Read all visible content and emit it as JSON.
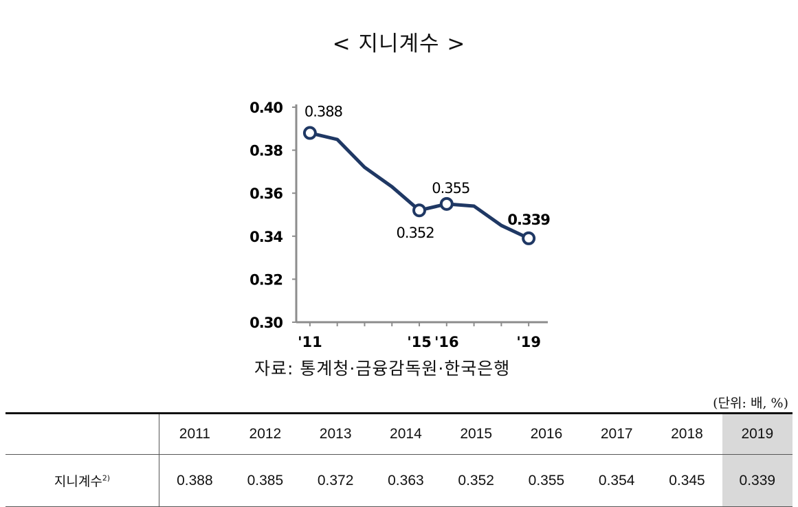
{
  "title": "< 지니계수 >",
  "source": "자료: 통계청·금융감독원·한국은행",
  "unit": "(단위: 배, %)",
  "chart_data": {
    "type": "line",
    "x": [
      2011,
      2012,
      2013,
      2014,
      2015,
      2016,
      2017,
      2018,
      2019
    ],
    "x_tick_labels": [
      "'11",
      "'15",
      "'16",
      "'19"
    ],
    "x_tick_years": [
      2011,
      2015,
      2016,
      2019
    ],
    "series": [
      {
        "values": [
          0.388,
          0.385,
          0.372,
          0.363,
          0.352,
          0.355,
          0.354,
          0.345,
          0.339
        ]
      }
    ],
    "marked_years": [
      2011,
      2015,
      2016,
      2019
    ],
    "data_labels": [
      {
        "year": 2011,
        "text": "0.388",
        "bold": false
      },
      {
        "year": 2015,
        "text": "0.352",
        "bold": false
      },
      {
        "year": 2016,
        "text": "0.355",
        "bold": false
      },
      {
        "year": 2019,
        "text": "0.339",
        "bold": true
      }
    ],
    "yticks": [
      "0.30",
      "0.32",
      "0.34",
      "0.36",
      "0.38",
      "0.40"
    ],
    "ylim": [
      0.3,
      0.4
    ],
    "xlim": [
      2010.5,
      2019.7
    ],
    "grid": false,
    "line_color": "#1f3864"
  },
  "table": {
    "years": [
      "2011",
      "2012",
      "2013",
      "2014",
      "2015",
      "2016",
      "2017",
      "2018",
      "2019"
    ],
    "row_label": "지니계수",
    "row_label_sup": "2)",
    "values": [
      "0.388",
      "0.385",
      "0.372",
      "0.363",
      "0.352",
      "0.355",
      "0.354",
      "0.345",
      "0.339"
    ],
    "highlight_color": "#d9d9d9"
  }
}
